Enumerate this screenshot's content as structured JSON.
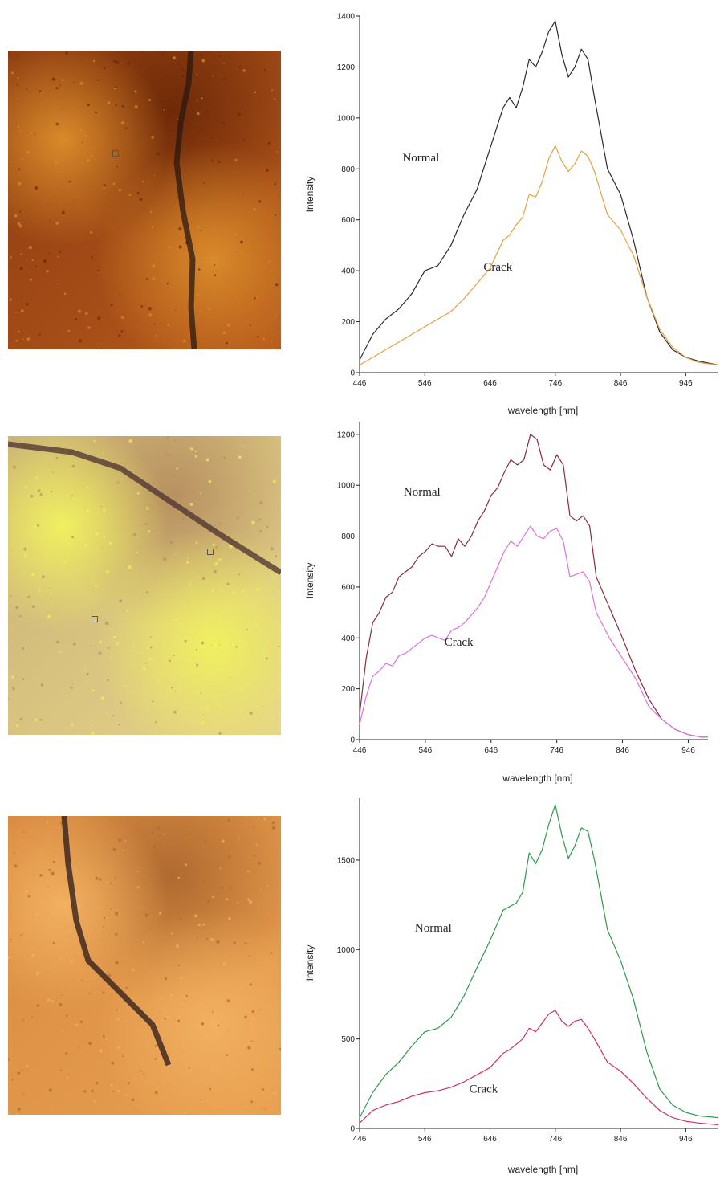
{
  "images": [
    {
      "name": "micrograph-1",
      "colors": [
        "#8a3a10",
        "#b85a1c",
        "#d98a2a",
        "#6e2a08"
      ],
      "crack": "#2a1a10"
    },
    {
      "name": "micrograph-2",
      "colors": [
        "#c9b075",
        "#e6d58a",
        "#f0f060",
        "#b89060"
      ],
      "crack": "#4a3030"
    },
    {
      "name": "micrograph-3",
      "colors": [
        "#d88a40",
        "#e8a050",
        "#f2b060",
        "#b06a30"
      ],
      "crack": "#2a1a1a"
    }
  ],
  "chart_data": [
    {
      "type": "line",
      "xlabel": "wavelength [nm]",
      "ylabel": "Intensity",
      "xlim": [
        446,
        996
      ],
      "ylim": [
        0,
        1400
      ],
      "xticks": [
        446,
        546,
        646,
        746,
        846,
        946
      ],
      "yticks": [
        0,
        200,
        400,
        600,
        800,
        1000,
        1200,
        1400
      ],
      "series": [
        {
          "name": "Normal",
          "color": "#2b2b2b",
          "x": [
            446,
            466,
            486,
            506,
            526,
            546,
            566,
            586,
            606,
            626,
            646,
            666,
            676,
            686,
            696,
            706,
            716,
            726,
            736,
            746,
            756,
            766,
            776,
            786,
            796,
            806,
            826,
            846,
            866,
            886,
            906,
            926,
            946,
            966,
            996
          ],
          "y": [
            50,
            150,
            210,
            250,
            310,
            400,
            420,
            500,
            620,
            720,
            880,
            1040,
            1080,
            1040,
            1120,
            1230,
            1200,
            1260,
            1340,
            1380,
            1250,
            1160,
            1200,
            1270,
            1230,
            1080,
            800,
            700,
            520,
            300,
            160,
            90,
            60,
            45,
            30
          ]
        },
        {
          "name": "Crack",
          "color": "#e8a040",
          "x": [
            446,
            466,
            486,
            506,
            526,
            546,
            566,
            586,
            606,
            626,
            646,
            666,
            676,
            686,
            696,
            706,
            716,
            726,
            736,
            746,
            756,
            766,
            776,
            786,
            796,
            806,
            826,
            846,
            866,
            886,
            906,
            926,
            946,
            966,
            996
          ],
          "y": [
            30,
            60,
            90,
            120,
            150,
            180,
            210,
            240,
            290,
            350,
            410,
            520,
            540,
            580,
            610,
            700,
            690,
            750,
            840,
            890,
            830,
            790,
            820,
            870,
            850,
            790,
            620,
            560,
            460,
            300,
            170,
            100,
            60,
            40,
            30
          ]
        }
      ],
      "annotations": [
        {
          "text": "Normal",
          "x": 540,
          "y": 830
        },
        {
          "text": "Crack",
          "x": 658,
          "y": 400
        }
      ]
    },
    {
      "type": "line",
      "xlabel": "wavelength [nm]",
      "ylabel": "Intensity",
      "xlim": [
        446,
        976
      ],
      "ylim": [
        0,
        1250
      ],
      "xticks": [
        446,
        546,
        646,
        746,
        846,
        946
      ],
      "yticks": [
        0,
        200,
        400,
        600,
        800,
        1000,
        1200
      ],
      "series": [
        {
          "name": "Normal",
          "color": "#8a2a3a",
          "x": [
            446,
            456,
            466,
            476,
            486,
            496,
            506,
            516,
            526,
            536,
            546,
            556,
            566,
            576,
            586,
            596,
            606,
            616,
            626,
            636,
            646,
            656,
            666,
            676,
            686,
            696,
            706,
            716,
            726,
            736,
            746,
            756,
            766,
            776,
            786,
            796,
            806,
            826,
            846,
            866,
            886,
            906,
            926,
            946,
            966,
            976
          ],
          "y": [
            100,
            320,
            460,
            500,
            560,
            580,
            640,
            660,
            680,
            720,
            740,
            770,
            760,
            760,
            720,
            790,
            760,
            800,
            860,
            900,
            960,
            990,
            1050,
            1100,
            1080,
            1100,
            1200,
            1180,
            1080,
            1060,
            1120,
            1080,
            880,
            860,
            880,
            840,
            640,
            520,
            400,
            270,
            160,
            80,
            40,
            20,
            10,
            10
          ]
        },
        {
          "name": "Crack",
          "color": "#e070e0",
          "x": [
            446,
            456,
            466,
            476,
            486,
            496,
            506,
            516,
            526,
            536,
            546,
            556,
            566,
            576,
            586,
            596,
            606,
            616,
            626,
            636,
            646,
            656,
            666,
            676,
            686,
            696,
            706,
            716,
            726,
            736,
            746,
            756,
            766,
            776,
            786,
            796,
            806,
            826,
            846,
            866,
            886,
            906,
            926,
            946,
            966,
            976
          ],
          "y": [
            60,
            170,
            250,
            270,
            300,
            290,
            330,
            340,
            360,
            380,
            400,
            410,
            400,
            390,
            430,
            440,
            460,
            490,
            520,
            560,
            620,
            680,
            740,
            780,
            760,
            800,
            840,
            800,
            790,
            820,
            830,
            780,
            640,
            650,
            660,
            620,
            500,
            400,
            320,
            240,
            130,
            80,
            40,
            20,
            10,
            10
          ]
        }
      ],
      "annotations": [
        {
          "text": "Normal",
          "x": 541,
          "y": 960
        },
        {
          "text": "Crack",
          "x": 597,
          "y": 370
        }
      ]
    },
    {
      "type": "line",
      "xlabel": "wavelength [nm]",
      "ylabel": "Intensity",
      "xlim": [
        446,
        996
      ],
      "ylim": [
        0,
        1850
      ],
      "xticks": [
        446,
        546,
        646,
        746,
        846,
        946
      ],
      "yticks": [
        0,
        500,
        1000,
        1500
      ],
      "series": [
        {
          "name": "Normal",
          "color": "#2e9a4a",
          "x": [
            446,
            466,
            486,
            506,
            526,
            546,
            566,
            586,
            606,
            626,
            646,
            666,
            676,
            686,
            696,
            706,
            716,
            726,
            736,
            746,
            756,
            766,
            776,
            786,
            796,
            806,
            826,
            846,
            866,
            886,
            906,
            926,
            946,
            966,
            996
          ],
          "y": [
            60,
            200,
            300,
            370,
            460,
            540,
            560,
            620,
            740,
            900,
            1050,
            1220,
            1240,
            1260,
            1320,
            1540,
            1480,
            1560,
            1700,
            1810,
            1640,
            1510,
            1580,
            1680,
            1660,
            1500,
            1110,
            940,
            720,
            430,
            220,
            130,
            90,
            70,
            60
          ]
        },
        {
          "name": "Crack",
          "color": "#d03060",
          "x": [
            446,
            466,
            486,
            506,
            526,
            546,
            566,
            586,
            606,
            626,
            646,
            666,
            676,
            686,
            696,
            706,
            716,
            726,
            736,
            746,
            756,
            766,
            776,
            786,
            796,
            806,
            826,
            846,
            866,
            886,
            906,
            926,
            946,
            966,
            996
          ],
          "y": [
            30,
            100,
            130,
            150,
            180,
            200,
            210,
            230,
            260,
            300,
            340,
            420,
            440,
            470,
            500,
            560,
            540,
            590,
            640,
            660,
            600,
            570,
            600,
            610,
            560,
            500,
            370,
            320,
            250,
            170,
            100,
            60,
            40,
            30,
            20
          ]
        }
      ],
      "annotations": [
        {
          "text": "Normal",
          "x": 559,
          "y": 1100
        },
        {
          "text": "Crack",
          "x": 636,
          "y": 200
        }
      ]
    }
  ]
}
